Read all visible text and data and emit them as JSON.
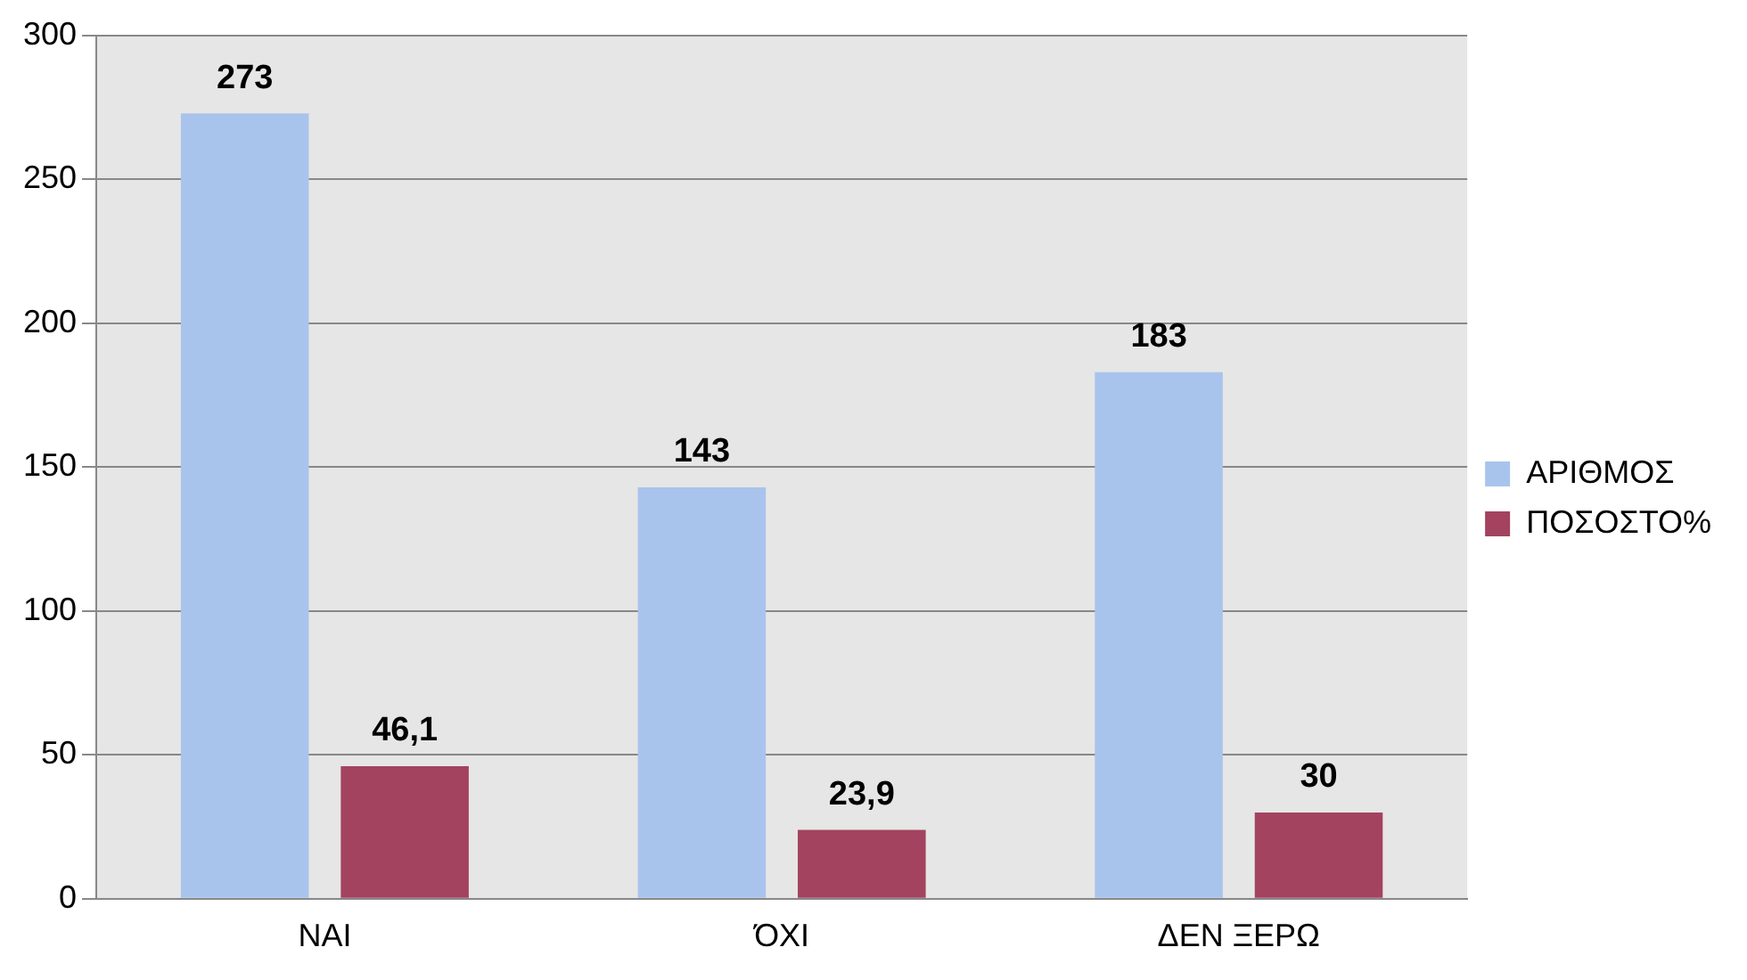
{
  "chart_data": {
    "type": "bar",
    "categories": [
      "ΝΑΙ",
      "ΌΧΙ",
      "ΔΕΝ ΞΕΡΩ"
    ],
    "series": [
      {
        "name": "ΑΡΙΘΜΟΣ",
        "color": "#a9c4ec",
        "values": [
          273,
          143,
          183
        ],
        "value_labels": [
          "273",
          "143",
          "183"
        ]
      },
      {
        "name": "ΠΟΣΟΣΤΟ%",
        "color": "#a3435f",
        "values": [
          46.1,
          23.9,
          30
        ],
        "value_labels": [
          "46,1",
          "23,9",
          "30"
        ]
      }
    ],
    "ylim": [
      0,
      300
    ],
    "yticks": [
      0,
      50,
      100,
      150,
      200,
      250,
      300
    ],
    "grid": "y",
    "legend": "right"
  }
}
